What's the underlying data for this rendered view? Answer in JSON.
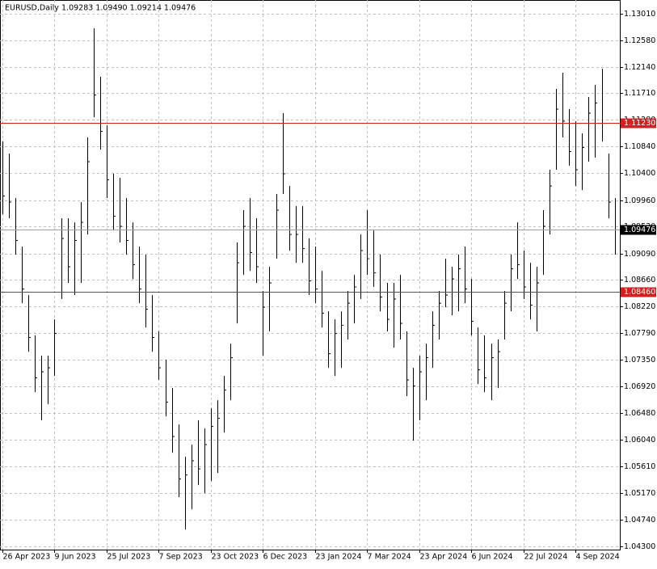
{
  "chart_data": {
    "type": "hlc",
    "title": "EURUSD,Daily",
    "subtitle": "1.09283 1.09490 1.09214 1.09476",
    "color": "#000000",
    "grid": true,
    "grid_color": "#c0c0c0",
    "categories": [
      "26 Apr 2023",
      null,
      null,
      null,
      null,
      null,
      null,
      null,
      "9 Jun 2023",
      null,
      null,
      null,
      null,
      null,
      null,
      null,
      "25 Jul 2023",
      null,
      null,
      null,
      null,
      null,
      null,
      null,
      "7 Sep 2023",
      null,
      null,
      null,
      null,
      null,
      null,
      null,
      "23 Oct 2023",
      null,
      null,
      null,
      null,
      null,
      null,
      null,
      "6 Dec 2023",
      null,
      null,
      null,
      null,
      null,
      null,
      null,
      "23 Jan 2024",
      null,
      null,
      null,
      null,
      null,
      null,
      null,
      "7 Mar 2024",
      null,
      null,
      null,
      null,
      null,
      null,
      null,
      "23 Apr 2024",
      null,
      null,
      null,
      null,
      null,
      null,
      null,
      "6 Jun 2024",
      null,
      null,
      null,
      null,
      null,
      null,
      null,
      "22 Jul 2024",
      null,
      null,
      null,
      null,
      null,
      null,
      null,
      "4 Sep 2024",
      null,
      null,
      null,
      null,
      null,
      null
    ],
    "high": [
      1.10921,
      1.10723,
      1.09996,
      1.09203,
      1.0841,
      1.07749,
      1.07418,
      1.07418,
      1.08013,
      1.09666,
      1.09666,
      1.09599,
      1.0993,
      1.10988,
      1.12772,
      1.11979,
      1.11186,
      1.10393,
      1.10327,
      1.09996,
      1.09599,
      1.09203,
      1.09071,
      1.0841,
      1.07815,
      1.07352,
      1.06889,
      1.06294,
      1.05766,
      1.05964,
      1.06361,
      1.06228,
      1.06559,
      1.06691,
      1.07088,
      1.07616,
      1.09269,
      1.09798,
      1.09996,
      1.09666,
      1.08476,
      1.08872,
      1.10062,
      1.11384,
      1.10194,
      1.09864,
      1.09864,
      1.09335,
      1.09203,
      1.08806,
      1.08145,
      1.08013,
      1.08145,
      1.08476,
      1.0874,
      1.09401,
      1.09798,
      1.09467,
      1.09071,
      1.08608,
      1.08608,
      1.0874,
      1.07815,
      1.0722,
      1.07418,
      1.07616,
      1.08145,
      1.08476,
      1.09005,
      1.08872,
      1.09071,
      1.09203,
      1.08674,
      1.07881,
      1.07749,
      1.07616,
      1.07683,
      1.08476,
      1.09071,
      1.09599,
      1.09137,
      1.08938,
      1.08872,
      1.09798,
      1.10459,
      1.11781,
      1.12045,
      1.1145,
      1.11252,
      1.11054,
      1.11649,
      1.11847,
      1.12111,
      1.10723,
      1.09996
    ],
    "low": [
      1.09732,
      1.09666,
      1.09071,
      1.08277,
      1.07484,
      1.06823,
      1.06361,
      1.06625,
      1.07088,
      1.08344,
      1.08608,
      1.0841,
      1.08608,
      1.09401,
      1.11318,
      1.10789,
      1.09996,
      1.09467,
      1.09269,
      1.09071,
      1.08674,
      1.08277,
      1.07881,
      1.07484,
      1.07022,
      1.06427,
      1.05832,
      1.05105,
      1.04576,
      1.04906,
      1.05303,
      1.05171,
      1.05369,
      1.05501,
      1.06162,
      1.06691,
      1.07947,
      1.0874,
      1.08806,
      1.08608,
      1.07418,
      1.07815,
      1.09005,
      1.10062,
      1.09137,
      1.08938,
      1.08938,
      1.0841,
      1.08277,
      1.07881,
      1.0722,
      1.07088,
      1.0722,
      1.07683,
      1.07947,
      1.08344,
      1.0874,
      1.08542,
      1.08145,
      1.07815,
      1.0755,
      1.07683,
      1.06757,
      1.0603,
      1.06361,
      1.06691,
      1.0722,
      1.07683,
      1.08211,
      1.08079,
      1.08145,
      1.08277,
      1.07749,
      1.06955,
      1.06823,
      1.06691,
      1.06889,
      1.07683,
      1.08145,
      1.08674,
      1.08344,
      1.08013,
      1.07815,
      1.0874,
      1.09401,
      1.10459,
      1.10988,
      1.10525,
      1.10194,
      1.10128,
      1.10591,
      1.10657,
      1.10921,
      1.09666,
      1.09071
    ],
    "close": [
      1.10029,
      1.0993,
      1.09302,
      1.08509,
      1.07716,
      1.07055,
      1.07154,
      1.0722,
      1.07782,
      1.09335,
      1.08872,
      1.09302,
      1.09599,
      1.10591,
      1.11682,
      1.11087,
      1.10294,
      1.09699,
      1.09533,
      1.09302,
      1.08905,
      1.08509,
      1.08178,
      1.07716,
      1.0722,
      1.06658,
      1.06096,
      1.05402,
      1.05468,
      1.057,
      1.05567,
      1.05964,
      1.06261,
      1.06394,
      1.06856,
      1.07385,
      1.08938,
      1.09533,
      1.09104,
      1.08872,
      1.08211,
      1.08608,
      1.09798,
      1.10393,
      1.09401,
      1.09401,
      1.0917,
      1.08641,
      1.08509,
      1.08112,
      1.07451,
      1.07782,
      1.07914,
      1.08277,
      1.08542,
      1.09137,
      1.09005,
      1.08773,
      1.08377,
      1.08013,
      1.08344,
      1.07947,
      1.07022,
      1.06922,
      1.07154,
      1.07385,
      1.07914,
      1.08277,
      1.0841,
      1.08674,
      1.08839,
      1.08509,
      1.0798,
      1.07187,
      1.07055,
      1.07385,
      1.07484,
      1.08277,
      1.08839,
      1.08905,
      1.08542,
      1.08244,
      1.08608,
      1.09533,
      1.10194,
      1.1145,
      1.11252,
      1.10756,
      1.10459,
      1.10822,
      1.11384,
      1.11549,
      1.11219,
      1.0993,
      1.09476
    ],
    "ylim": [
      1.04247,
      1.13235
    ],
    "yticks": [
      {
        "value": 1.1301,
        "label": "1.13010"
      },
      {
        "value": 1.1258,
        "label": "1.12580"
      },
      {
        "value": 1.1214,
        "label": "1.12140"
      },
      {
        "value": 1.1171,
        "label": "1.11710"
      },
      {
        "value": 1.1128,
        "label": "1.11280"
      },
      {
        "value": 1.1084,
        "label": "1.10840"
      },
      {
        "value": 1.104,
        "label": "1.10400"
      },
      {
        "value": 1.0996,
        "label": "1.09960"
      },
      {
        "value": 1.0953,
        "label": "1.09530"
      },
      {
        "value": 1.0909,
        "label": "1.09090"
      },
      {
        "value": 1.0866,
        "label": "1.08660"
      },
      {
        "value": 1.0822,
        "label": "1.08220"
      },
      {
        "value": 1.0779,
        "label": "1.07790"
      },
      {
        "value": 1.0735,
        "label": "1.07350"
      },
      {
        "value": 1.0692,
        "label": "1.06920"
      },
      {
        "value": 1.0648,
        "label": "1.06480"
      },
      {
        "value": 1.0604,
        "label": "1.06040"
      },
      {
        "value": 1.0561,
        "label": "1.05610"
      },
      {
        "value": 1.0517,
        "label": "1.05170"
      },
      {
        "value": 1.0474,
        "label": "1.04740"
      },
      {
        "value": 1.043,
        "label": "1.04300"
      }
    ],
    "levels": [
      {
        "value": 1.1123,
        "label": "1.11230"
      },
      {
        "value": 1.0846,
        "label": "1.08460"
      }
    ],
    "level_color": "#d02020",
    "current_price": {
      "value": 1.09476,
      "label": "1.09476"
    },
    "current_color": "#a0a0a0"
  }
}
